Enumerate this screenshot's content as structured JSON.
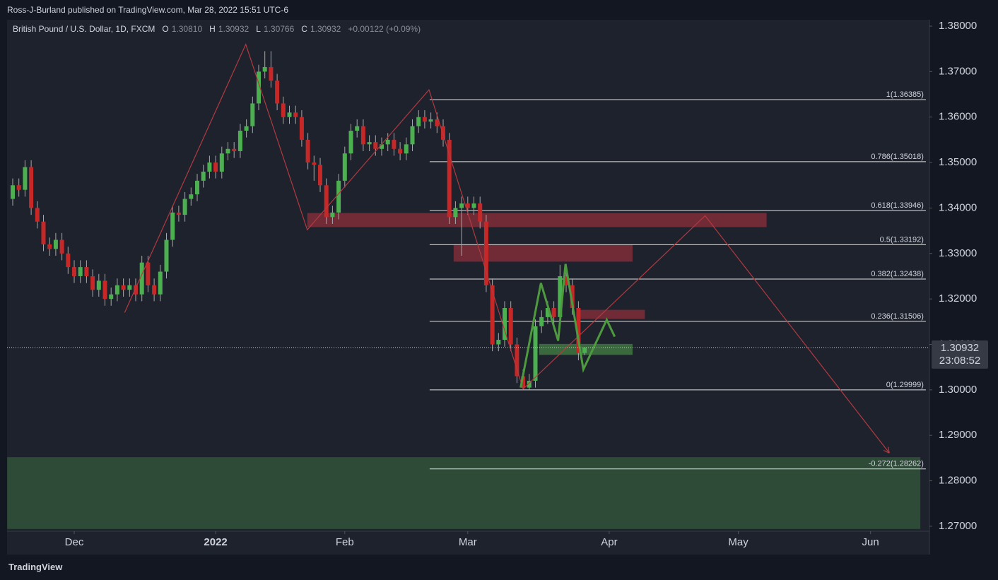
{
  "header": {
    "publisher": "Ross-J-Burland published on TradingView.com, Mar 28, 2022 15:51 UTC-6",
    "brand": "TradingView"
  },
  "chart_data": {
    "type": "candlestick",
    "title": "British Pound / U.S. Dollar, 1D, FXCM",
    "ohlc_legend": [
      {
        "label": "O",
        "value": "1.30810"
      },
      {
        "label": "H",
        "value": "1.30932"
      },
      {
        "label": "L",
        "value": "1.30766"
      },
      {
        "label": "C",
        "value": "1.30932"
      }
    ],
    "change": "+0.00122 (+0.09%)",
    "up_color": "#4caf50",
    "down_color": "#c62828",
    "wick_color": "#a8a8a8",
    "x": [
      -10,
      -9,
      -8,
      -7,
      -6,
      -5,
      -4,
      -3,
      -2,
      -1,
      0,
      1,
      2,
      3,
      4,
      5,
      6,
      7,
      8,
      9,
      10,
      11,
      12,
      13,
      14,
      15,
      16,
      17,
      18,
      19,
      20,
      21,
      22,
      23,
      24,
      25,
      26,
      27,
      28,
      29,
      30,
      31,
      32,
      33,
      34,
      35,
      36,
      37,
      38,
      39,
      40,
      41,
      42,
      43,
      44,
      45,
      46,
      47,
      48,
      49,
      50,
      51,
      52,
      53,
      54,
      55,
      56,
      57,
      58,
      59,
      60,
      61,
      62,
      63,
      64,
      65,
      66,
      67,
      68,
      69,
      70,
      71,
      72,
      73,
      74,
      75,
      76,
      77,
      78,
      79,
      80,
      81,
      82,
      83
    ],
    "ohlc": [
      [
        1.342,
        1.3465,
        1.3405,
        1.345
      ],
      [
        1.345,
        1.3465,
        1.3425,
        1.344
      ],
      [
        1.344,
        1.3505,
        1.3425,
        1.349
      ],
      [
        1.349,
        1.3505,
        1.3385,
        1.34
      ],
      [
        1.34,
        1.3415,
        1.3355,
        1.337
      ],
      [
        1.337,
        1.3385,
        1.3305,
        1.332
      ],
      [
        1.332,
        1.3335,
        1.3295,
        1.331
      ],
      [
        1.331,
        1.3345,
        1.3295,
        1.333
      ],
      [
        1.333,
        1.3345,
        1.3285,
        1.33
      ],
      [
        1.33,
        1.3315,
        1.3255,
        1.327
      ],
      [
        1.327,
        1.3285,
        1.3235,
        1.325
      ],
      [
        1.325,
        1.3285,
        1.3235,
        1.327
      ],
      [
        1.327,
        1.3285,
        1.3235,
        1.325
      ],
      [
        1.325,
        1.3265,
        1.3205,
        1.322
      ],
      [
        1.322,
        1.3255,
        1.3205,
        1.324
      ],
      [
        1.324,
        1.3255,
        1.3185,
        1.32
      ],
      [
        1.32,
        1.3225,
        1.3185,
        1.321
      ],
      [
        1.321,
        1.3245,
        1.3195,
        1.323
      ],
      [
        1.323,
        1.3245,
        1.3205,
        1.322
      ],
      [
        1.322,
        1.3245,
        1.3205,
        1.323
      ],
      [
        1.323,
        1.3245,
        1.3195,
        1.321
      ],
      [
        1.321,
        1.3295,
        1.3195,
        1.328
      ],
      [
        1.328,
        1.3295,
        1.3215,
        1.323
      ],
      [
        1.323,
        1.3245,
        1.3195,
        1.321
      ],
      [
        1.321,
        1.3275,
        1.3195,
        1.326
      ],
      [
        1.326,
        1.3345,
        1.3245,
        1.333
      ],
      [
        1.333,
        1.3405,
        1.3315,
        1.339
      ],
      [
        1.339,
        1.3405,
        1.337,
        1.3385
      ],
      [
        1.3385,
        1.3435,
        1.337,
        1.342
      ],
      [
        1.342,
        1.3445,
        1.3405,
        1.343
      ],
      [
        1.343,
        1.3475,
        1.3415,
        1.346
      ],
      [
        1.346,
        1.3495,
        1.3445,
        1.348
      ],
      [
        1.348,
        1.3515,
        1.3465,
        1.35
      ],
      [
        1.35,
        1.3515,
        1.3465,
        1.348
      ],
      [
        1.348,
        1.3535,
        1.3465,
        1.352
      ],
      [
        1.352,
        1.3545,
        1.3505,
        1.353
      ],
      [
        1.353,
        1.3545,
        1.351,
        1.3525
      ],
      [
        1.3525,
        1.3585,
        1.351,
        1.357
      ],
      [
        1.357,
        1.3595,
        1.3555,
        1.358
      ],
      [
        1.358,
        1.3645,
        1.3565,
        1.363
      ],
      [
        1.363,
        1.3715,
        1.3615,
        1.37
      ],
      [
        1.37,
        1.3745,
        1.3685,
        1.371
      ],
      [
        1.371,
        1.3745,
        1.3665,
        1.368
      ],
      [
        1.368,
        1.3695,
        1.3615,
        1.363
      ],
      [
        1.363,
        1.3645,
        1.3585,
        1.36
      ],
      [
        1.36,
        1.3625,
        1.3585,
        1.361
      ],
      [
        1.361,
        1.3625,
        1.3585,
        1.36
      ],
      [
        1.36,
        1.3615,
        1.3535,
        1.355
      ],
      [
        1.355,
        1.3565,
        1.3485,
        1.35
      ],
      [
        1.35,
        1.3515,
        1.346,
        1.3495
      ],
      [
        1.3495,
        1.351,
        1.3435,
        1.345
      ],
      [
        1.345,
        1.3465,
        1.3365,
        1.338
      ],
      [
        1.338,
        1.3405,
        1.3365,
        1.339
      ],
      [
        1.339,
        1.3475,
        1.3375,
        1.346
      ],
      [
        1.346,
        1.3535,
        1.3445,
        1.352
      ],
      [
        1.352,
        1.3585,
        1.3505,
        1.357
      ],
      [
        1.357,
        1.3595,
        1.3555,
        1.358
      ],
      [
        1.358,
        1.3595,
        1.3525,
        1.354
      ],
      [
        1.354,
        1.356,
        1.3525,
        1.3545
      ],
      [
        1.3545,
        1.356,
        1.3515,
        1.353
      ],
      [
        1.353,
        1.3555,
        1.3515,
        1.354
      ],
      [
        1.354,
        1.3565,
        1.3525,
        1.355
      ],
      [
        1.355,
        1.3565,
        1.3515,
        1.353
      ],
      [
        1.353,
        1.3545,
        1.3505,
        1.352
      ],
      [
        1.352,
        1.3555,
        1.3505,
        1.354
      ],
      [
        1.354,
        1.3595,
        1.3525,
        1.358
      ],
      [
        1.358,
        1.3615,
        1.3565,
        1.36
      ],
      [
        1.36,
        1.3615,
        1.3575,
        1.359
      ],
      [
        1.359,
        1.361,
        1.3575,
        1.3595
      ],
      [
        1.3595,
        1.361,
        1.3565,
        1.358
      ],
      [
        1.358,
        1.3595,
        1.3535,
        1.355
      ],
      [
        1.355,
        1.3565,
        1.3365,
        1.338
      ],
      [
        1.338,
        1.3415,
        1.3365,
        1.34
      ],
      [
        1.34,
        1.3425,
        1.3295,
        1.341
      ],
      [
        1.341,
        1.3425,
        1.3385,
        1.34
      ],
      [
        1.34,
        1.3425,
        1.3385,
        1.341
      ],
      [
        1.341,
        1.3425,
        1.3355,
        1.337
      ],
      [
        1.337,
        1.3385,
        1.3215,
        1.323
      ],
      [
        1.323,
        1.3245,
        1.3085,
        1.31
      ],
      [
        1.31,
        1.3125,
        1.3085,
        1.311
      ],
      [
        1.311,
        1.3195,
        1.3095,
        1.318
      ],
      [
        1.318,
        1.3195,
        1.3085,
        1.31
      ],
      [
        1.31,
        1.3115,
        1.3015,
        1.303
      ],
      [
        1.303,
        1.3045,
        1.29999,
        1.3005
      ],
      [
        1.3005,
        1.3035,
        1.3,
        1.302
      ],
      [
        1.302,
        1.3155,
        1.3005,
        1.314
      ],
      [
        1.314,
        1.3175,
        1.3125,
        1.316
      ],
      [
        1.316,
        1.3195,
        1.3145,
        1.318
      ],
      [
        1.318,
        1.3195,
        1.3145,
        1.316
      ],
      [
        1.316,
        1.3275,
        1.3145,
        1.325
      ],
      [
        1.325,
        1.3265,
        1.3215,
        1.323
      ],
      [
        1.323,
        1.3245,
        1.3165,
        1.318
      ],
      [
        1.318,
        1.3195,
        1.3065,
        1.3081
      ],
      [
        1.3081,
        1.30932,
        1.30766,
        1.30932
      ]
    ],
    "xlim": [
      -10.92,
      139.08
    ],
    "xticks": [
      {
        "value": 0,
        "label": "Dec"
      },
      {
        "value": 23,
        "label": "2022"
      },
      {
        "value": 44,
        "label": "Feb"
      },
      {
        "value": 64,
        "label": "Mar"
      },
      {
        "value": 87,
        "label": "Apr"
      },
      {
        "value": 108,
        "label": "May"
      },
      {
        "value": 129.5,
        "label": "Jun"
      }
    ],
    "ylim": [
      1.2689,
      1.3814
    ],
    "yticks": [
      {
        "value": 1.38,
        "label": "1.38000"
      },
      {
        "value": 1.37,
        "label": "1.37000"
      },
      {
        "value": 1.36,
        "label": "1.36000"
      },
      {
        "value": 1.35,
        "label": "1.35000"
      },
      {
        "value": 1.34,
        "label": "1.34000"
      },
      {
        "value": 1.33,
        "label": "1.33000"
      },
      {
        "value": 1.32,
        "label": "1.32000"
      },
      {
        "value": 1.31,
        "label": "1.31000"
      },
      {
        "value": 1.3,
        "label": "1.30000"
      },
      {
        "value": 1.29,
        "label": "1.29000"
      },
      {
        "value": 1.28,
        "label": "1.28000"
      },
      {
        "value": 1.27,
        "label": "1.27000"
      }
    ],
    "last_price": {
      "value": 1.30932,
      "label": "1.30932",
      "countdown": "23:08:52"
    },
    "fib": {
      "x_start": 57.8,
      "x_end": 138.5,
      "levels": [
        {
          "value": 1.36385,
          "label": "1(1.36385)"
        },
        {
          "value": 1.35018,
          "label": "0.786(1.35018)"
        },
        {
          "value": 1.33946,
          "label": "0.618(1.33946)"
        },
        {
          "value": 1.33192,
          "label": "0.5(1.33192)"
        },
        {
          "value": 1.32438,
          "label": "0.382(1.32438)"
        },
        {
          "value": 1.31506,
          "label": "0.236(1.31506)"
        },
        {
          "value": 1.29999,
          "label": "0(1.29999)"
        },
        {
          "value": 1.28262,
          "label": "-0.272(1.28262)"
        }
      ]
    },
    "zones": [
      {
        "x": [
          -10.9,
          137.6
        ],
        "y": [
          1.2694,
          1.2852
        ],
        "color": "#2e4b38"
      },
      {
        "x": [
          37.9,
          112.6
        ],
        "y": [
          1.3358,
          1.3389
        ],
        "color": "#a8323e"
      },
      {
        "x": [
          61.7,
          90.8
        ],
        "y": [
          1.3282,
          1.3319
        ],
        "color": "#a8323e"
      },
      {
        "x": [
          82.2,
          92.8
        ],
        "y": [
          1.3156,
          1.3176
        ],
        "color": "#a8323e"
      },
      {
        "x": [
          75.6,
          90.8
        ],
        "y": [
          1.3077,
          1.3101
        ],
        "color": "#4f9a4a"
      }
    ],
    "drawings": [
      {
        "color": "#b23a40",
        "x": [
          8.2,
          27.9,
          37.9,
          57.7,
          73.0,
          102.6,
          132.5
        ],
        "y": [
          1.317,
          1.376,
          1.3352,
          1.366,
          1.3002,
          1.3383,
          1.2862
        ]
      },
      {
        "color": "#4e9a3e",
        "x": [
          72.6,
          75.9,
          78.7,
          79.9,
          82.8,
          86.6,
          87.9
        ],
        "y": [
          1.3005,
          1.3235,
          1.3108,
          1.3277,
          1.3045,
          1.3154,
          1.3117
        ]
      }
    ]
  }
}
